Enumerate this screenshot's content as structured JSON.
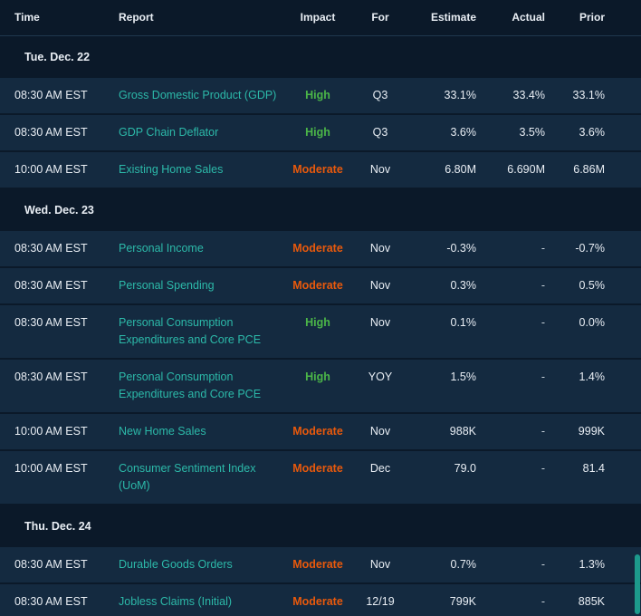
{
  "colors": {
    "page_bg": "#0b1929",
    "row_bg": "#142a40",
    "text": "#e9eef4",
    "muted": "#c9d3dc",
    "link": "#2cb9a9",
    "impact_high": "#4bb648",
    "impact_moderate": "#e8590c",
    "header_border": "#20374e",
    "scroll_thumb": "#1d9a8c"
  },
  "header": {
    "columns": [
      "Time",
      "Report",
      "Impact",
      "For",
      "Estimate",
      "Actual",
      "Prior"
    ]
  },
  "groups": [
    {
      "date": "Tue. Dec. 22",
      "rows": [
        {
          "time": "08:30 AM EST",
          "report": "Gross Domestic Product (GDP)",
          "impact": "High",
          "for": "Q3",
          "estimate": "33.1%",
          "actual": "33.4%",
          "prior": "33.1%"
        },
        {
          "time": "08:30 AM EST",
          "report": "GDP Chain Deflator",
          "impact": "High",
          "for": "Q3",
          "estimate": "3.6%",
          "actual": "3.5%",
          "prior": "3.6%"
        },
        {
          "time": "10:00 AM EST",
          "report": "Existing Home Sales",
          "impact": "Moderate",
          "for": "Nov",
          "estimate": "6.80M",
          "actual": "6.690M",
          "prior": "6.86M"
        }
      ]
    },
    {
      "date": "Wed. Dec. 23",
      "rows": [
        {
          "time": "08:30 AM EST",
          "report": "Personal Income",
          "impact": "Moderate",
          "for": "Nov",
          "estimate": "-0.3%",
          "actual": "-",
          "prior": "-0.7%"
        },
        {
          "time": "08:30 AM EST",
          "report": "Personal Spending",
          "impact": "Moderate",
          "for": "Nov",
          "estimate": "0.3%",
          "actual": "-",
          "prior": "0.5%"
        },
        {
          "time": "08:30 AM EST",
          "report": "Personal Consumption Expenditures and Core PCE",
          "impact": "High",
          "for": "Nov",
          "estimate": "0.1%",
          "actual": "-",
          "prior": "0.0%"
        },
        {
          "time": "08:30 AM EST",
          "report": "Personal Consumption Expenditures and Core PCE",
          "impact": "High",
          "for": "YOY",
          "estimate": "1.5%",
          "actual": "-",
          "prior": "1.4%"
        },
        {
          "time": "10:00 AM EST",
          "report": "New Home Sales",
          "impact": "Moderate",
          "for": "Nov",
          "estimate": "988K",
          "actual": "-",
          "prior": "999K"
        },
        {
          "time": "10:00 AM EST",
          "report": "Consumer Sentiment Index (UoM)",
          "impact": "Moderate",
          "for": "Dec",
          "estimate": "79.0",
          "actual": "-",
          "prior": "81.4"
        }
      ]
    },
    {
      "date": "Thu. Dec. 24",
      "rows": [
        {
          "time": "08:30 AM EST",
          "report": "Durable Goods Orders",
          "impact": "Moderate",
          "for": "Nov",
          "estimate": "0.7%",
          "actual": "-",
          "prior": "1.3%"
        },
        {
          "time": "08:30 AM EST",
          "report": "Jobless Claims (Initial)",
          "impact": "Moderate",
          "for": "12/19",
          "estimate": "799K",
          "actual": "-",
          "prior": "885K"
        }
      ]
    }
  ]
}
